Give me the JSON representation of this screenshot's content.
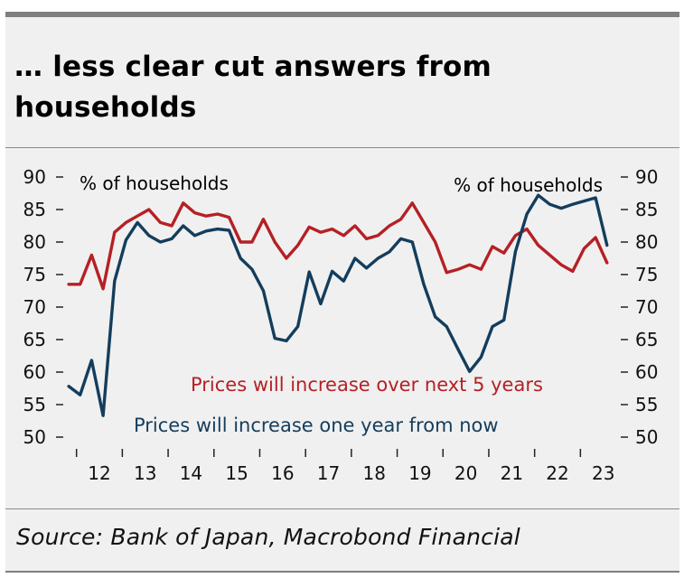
{
  "title": "… less clear cut answers from households",
  "source": "Source: Bank of Japan, Macrobond Financial",
  "colors": {
    "red_series": "#b52025",
    "blue_series": "#143d5c",
    "background": "#f0f0f0"
  },
  "chart_data": {
    "type": "line",
    "ylabel_left": "% of households",
    "ylabel_right": "% of households",
    "ylim": [
      50,
      90
    ],
    "yticks": [
      50,
      55,
      60,
      65,
      70,
      75,
      80,
      85,
      90
    ],
    "xlim": [
      2011.75,
      2023.9
    ],
    "xticks": [
      "12",
      "13",
      "14",
      "15",
      "16",
      "17",
      "18",
      "19",
      "20",
      "21",
      "22",
      "23"
    ],
    "series": [
      {
        "name": "Prices will increase over next 5 years",
        "color": "#b52025",
        "x": [
          2011.83,
          2012.08,
          2012.33,
          2012.58,
          2012.83,
          2013.08,
          2013.33,
          2013.58,
          2013.83,
          2014.08,
          2014.33,
          2014.58,
          2014.83,
          2015.08,
          2015.33,
          2015.58,
          2015.83,
          2016.08,
          2016.33,
          2016.58,
          2016.83,
          2017.08,
          2017.33,
          2017.58,
          2017.83,
          2018.08,
          2018.33,
          2018.58,
          2018.83,
          2019.08,
          2019.33,
          2019.58,
          2019.83,
          2020.08,
          2020.33,
          2020.58,
          2020.83,
          2021.08,
          2021.33,
          2021.58,
          2021.83,
          2022.08,
          2022.33,
          2022.58,
          2022.83,
          2023.08,
          2023.33,
          2023.58
        ],
        "values": [
          73.5,
          73.5,
          78,
          72.8,
          81.5,
          83,
          84,
          85,
          83,
          82.5,
          86,
          84.5,
          84,
          84.3,
          83.8,
          80,
          80,
          83.5,
          80,
          77.5,
          79.5,
          82.3,
          81.5,
          82,
          81,
          82.5,
          80.5,
          81,
          82.5,
          83.5,
          86,
          83,
          80,
          75.3,
          75.8,
          76.5,
          75.8,
          79.3,
          78.3,
          81,
          82,
          79.5,
          78,
          76.5,
          75.5,
          79,
          80.7,
          76.8
        ]
      },
      {
        "name": "Prices will increase one year from now",
        "color": "#143d5c",
        "x": [
          2011.83,
          2012.08,
          2012.33,
          2012.58,
          2012.83,
          2013.08,
          2013.33,
          2013.58,
          2013.83,
          2014.08,
          2014.33,
          2014.58,
          2014.83,
          2015.08,
          2015.33,
          2015.58,
          2015.83,
          2016.08,
          2016.33,
          2016.58,
          2016.83,
          2017.08,
          2017.33,
          2017.58,
          2017.83,
          2018.08,
          2018.33,
          2018.58,
          2018.83,
          2019.08,
          2019.33,
          2019.58,
          2019.83,
          2020.08,
          2020.33,
          2020.58,
          2020.83,
          2021.08,
          2021.33,
          2021.58,
          2021.83,
          2022.08,
          2022.33,
          2022.58,
          2022.83,
          2023.08,
          2023.33,
          2023.58
        ],
        "values": [
          57.8,
          56.5,
          61.8,
          53.3,
          74,
          80.3,
          83,
          81,
          80,
          80.5,
          82.5,
          81,
          81.7,
          82,
          81.8,
          77.5,
          75.8,
          72.5,
          65.2,
          64.8,
          67,
          75.4,
          70.5,
          75.5,
          74,
          77.5,
          76,
          77.5,
          78.5,
          80.5,
          80,
          73.5,
          68.5,
          67,
          63.5,
          60.1,
          62.3,
          67,
          68,
          78.5,
          84.3,
          87.2,
          85.8,
          85.2,
          85.8,
          86.3,
          86.8,
          79.5
        ]
      }
    ]
  }
}
